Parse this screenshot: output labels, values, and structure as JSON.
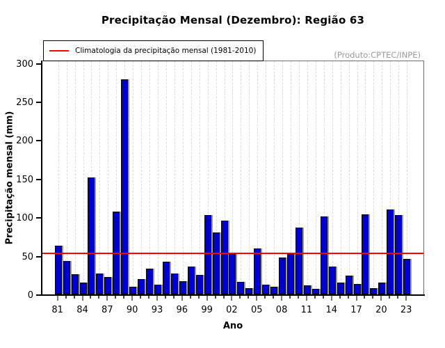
{
  "chart_data": {
    "type": "bar",
    "title": "Precipitação Mensal (Dezembro): Região 63",
    "xlabel": "Ano",
    "ylabel": "Precipitação mensal (mm)",
    "annotation": "(Produto:CPTEC/INPE)",
    "legend": {
      "label": "Climatologia da precipitação mensal (1981-2010)",
      "position": "top-left"
    },
    "climatology_value": 53,
    "ylim": [
      0,
      304
    ],
    "yticks": [
      0,
      50,
      100,
      150,
      200,
      250,
      300
    ],
    "grid": "vertical-dashed",
    "years": [
      1981,
      1982,
      1983,
      1984,
      1985,
      1986,
      1987,
      1988,
      1989,
      1990,
      1991,
      1992,
      1993,
      1994,
      1995,
      1996,
      1997,
      1998,
      1999,
      2000,
      2001,
      2002,
      2003,
      2004,
      2005,
      2006,
      2007,
      2008,
      2009,
      2010,
      2011,
      2012,
      2013,
      2014,
      2015,
      2016,
      2017,
      2018,
      2019,
      2020,
      2021,
      2022,
      2023
    ],
    "values": [
      63,
      43,
      26,
      15,
      152,
      27,
      23,
      107,
      279,
      10,
      20,
      33,
      13,
      42,
      27,
      17,
      36,
      25,
      103,
      80,
      96,
      52,
      16,
      8,
      60,
      13,
      10,
      48,
      52,
      87,
      12,
      7,
      101,
      36,
      15,
      24,
      14,
      104,
      8,
      15,
      110,
      103,
      46
    ],
    "x_tick_label_years": [
      1981,
      1984,
      1987,
      1990,
      1993,
      1996,
      1999,
      2002,
      2005,
      2008,
      2011,
      2014,
      2017,
      2020,
      2023
    ],
    "x_tick_labels": [
      "81",
      "84",
      "87",
      "90",
      "93",
      "96",
      "99",
      "02",
      "05",
      "08",
      "11",
      "14",
      "17",
      "20",
      "23"
    ],
    "colors": {
      "bar": "#0000CC",
      "bar_border": "#000000",
      "bar_shadow": "#999999",
      "climatology": "#FF0000",
      "grid": "#DBDBDB",
      "annotation_text": "#999999",
      "box": "#6E6E6E"
    }
  }
}
